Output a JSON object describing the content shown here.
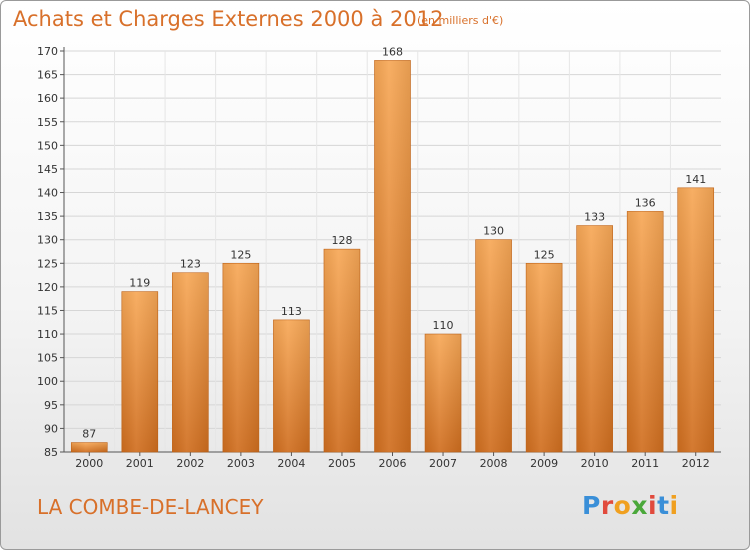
{
  "header": {
    "title": "Achats et Charges Externes 2000 à 2012",
    "unit_note": "(en milliers d'€)"
  },
  "footer": {
    "commune": "LA COMBE-DE-LANCEY",
    "logo_text": "Proxiti"
  },
  "colors": {
    "accent": "#d8702a",
    "bar_light": "#f6a24e",
    "bar_dark": "#d06e1f"
  },
  "chart_data": {
    "type": "bar",
    "title": "Achats et Charges Externes 2000 à 2012",
    "categories": [
      "2000",
      "2001",
      "2002",
      "2003",
      "2004",
      "2005",
      "2006",
      "2007",
      "2008",
      "2009",
      "2010",
      "2011",
      "2012"
    ],
    "values": [
      87,
      119,
      123,
      125,
      113,
      128,
      168,
      110,
      130,
      125,
      133,
      136,
      141
    ],
    "data_labels": [
      "87",
      "119",
      "123",
      "125",
      "113",
      "128",
      "168",
      "110",
      "130",
      "125",
      "133",
      "136",
      "141"
    ],
    "ylim": [
      85,
      170
    ],
    "yticks": [
      "85",
      "90",
      "95",
      "100",
      "105",
      "110",
      "115",
      "120",
      "125",
      "130",
      "135",
      "140",
      "145",
      "150",
      "155",
      "160",
      "165",
      "170"
    ],
    "grid": true,
    "legend": "none"
  }
}
